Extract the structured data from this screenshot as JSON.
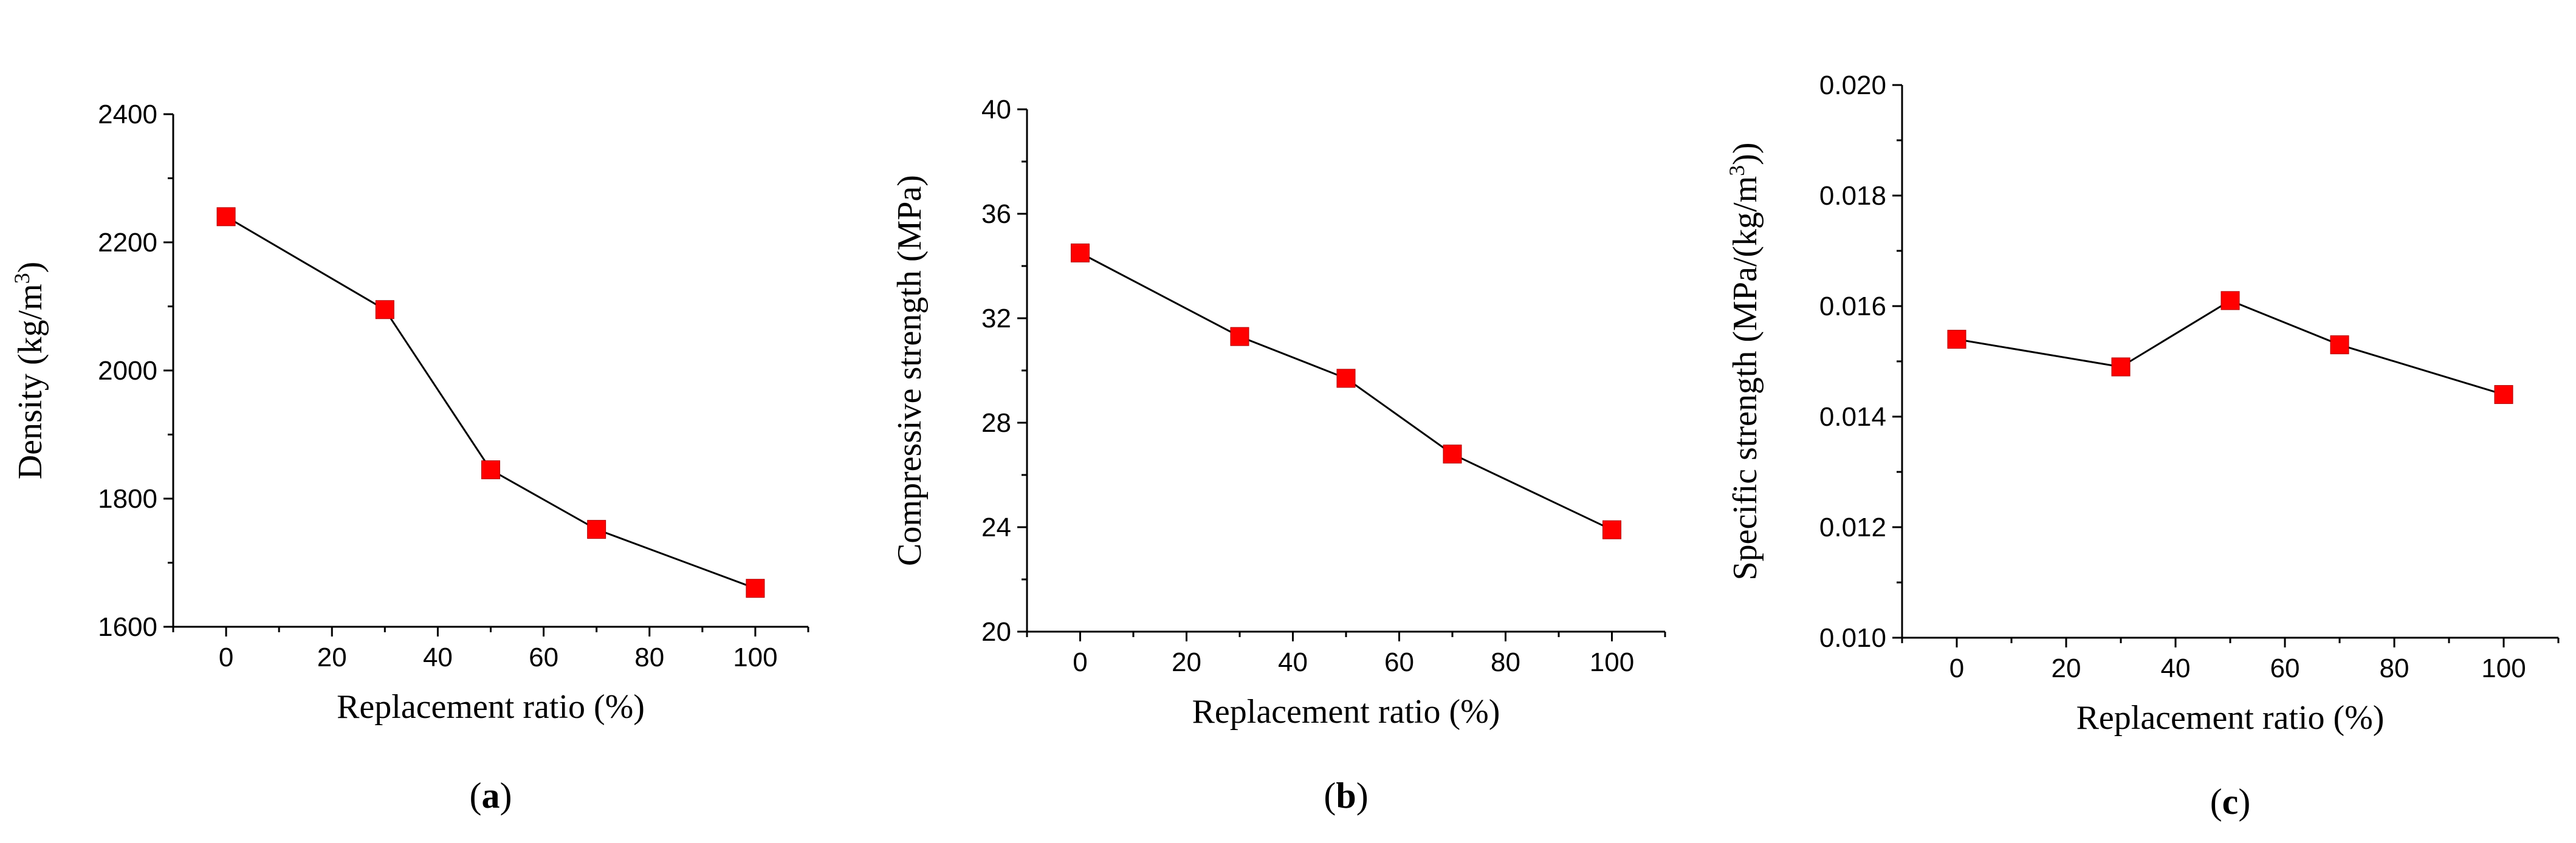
{
  "chart_data": [
    {
      "type": "line",
      "panel_label": "a",
      "title": "",
      "xlabel": "Replacement ratio (%)",
      "ylabel": "Density (kg/m",
      "ylabel_sup": "3",
      "ylabel_suffix": ")",
      "x": [
        0,
        30,
        50,
        70,
        100
      ],
      "series": [
        {
          "name": "Density",
          "values": [
            2240,
            2095,
            1845,
            1752,
            1660
          ]
        }
      ],
      "xlim": [
        -10,
        110
      ],
      "ylim": [
        1600,
        2400
      ],
      "xticks": [
        0,
        20,
        40,
        60,
        80,
        100
      ],
      "yticks": [
        1600,
        1800,
        2000,
        2200,
        2400
      ],
      "ydecimals": 0,
      "grid": false,
      "marker_color": "#ff0000",
      "line_color": "#000000"
    },
    {
      "type": "line",
      "panel_label": "b",
      "title": "",
      "xlabel": "Replacement ratio (%)",
      "ylabel": "Compressive strength (MPa)",
      "ylabel_sup": "",
      "ylabel_suffix": "",
      "x": [
        0,
        30,
        50,
        70,
        100
      ],
      "series": [
        {
          "name": "Compressive strength",
          "values": [
            34.5,
            31.3,
            29.7,
            26.8,
            23.9
          ]
        }
      ],
      "xlim": [
        -10,
        110
      ],
      "ylim": [
        20,
        40
      ],
      "xticks": [
        0,
        20,
        40,
        60,
        80,
        100
      ],
      "yticks": [
        20,
        24,
        28,
        32,
        36,
        40
      ],
      "ydecimals": 0,
      "grid": false,
      "marker_color": "#ff0000",
      "line_color": "#000000"
    },
    {
      "type": "line",
      "panel_label": "c",
      "title": "",
      "xlabel": "Replacement ratio (%)",
      "ylabel": "Specific strength (MPa/(kg/m",
      "ylabel_sup": "3",
      "ylabel_suffix": "))",
      "x": [
        0,
        30,
        50,
        70,
        100
      ],
      "series": [
        {
          "name": "Specific strength",
          "values": [
            0.0154,
            0.0149,
            0.0161,
            0.0153,
            0.0144
          ]
        }
      ],
      "xlim": [
        -10,
        110
      ],
      "ylim": [
        0.01,
        0.02
      ],
      "xticks": [
        0,
        20,
        40,
        60,
        80,
        100
      ],
      "yticks": [
        0.01,
        0.012,
        0.014,
        0.016,
        0.018,
        0.02
      ],
      "ydecimals": 3,
      "grid": false,
      "marker_color": "#ff0000",
      "line_color": "#000000"
    }
  ]
}
